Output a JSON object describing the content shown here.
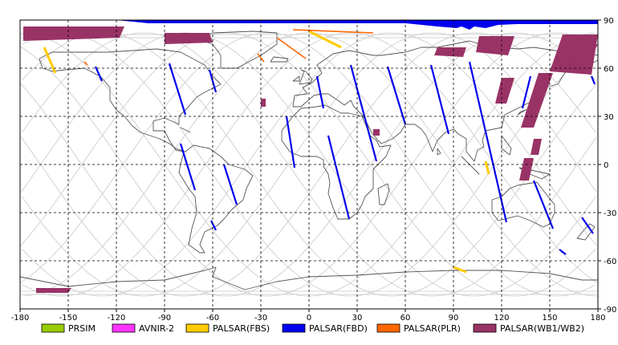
{
  "map": {
    "lon_range": [
      -180,
      180
    ],
    "lat_range": [
      -90,
      90
    ],
    "lon_ticks": [
      "-180",
      "-150",
      "-120",
      "-90",
      "-60",
      "-30",
      "0",
      "30",
      "60",
      "90",
      "120",
      "150",
      "180"
    ],
    "lat_ticks": [
      "90",
      "60",
      "30",
      "0",
      "-30",
      "-60",
      "-90"
    ],
    "grid": "dashed",
    "colors": {
      "land_outline": "#555555",
      "orbit_track": "#c8c8c8",
      "grid": "#000000",
      "frame": "#000000"
    }
  },
  "legend": [
    {
      "label": "PRSIM",
      "color": "#99cc00"
    },
    {
      "label": "AVNIR-2",
      "color": "#ff33ff"
    },
    {
      "label": "PALSAR(FBS)",
      "color": "#ffcc00"
    },
    {
      "label": "PALSAR(FBD)",
      "color": "#0000ee"
    },
    {
      "label": "PALSAR(PLR)",
      "color": "#ff6600"
    },
    {
      "label": "PALSAR(WB1/WB2)",
      "color": "#993366"
    }
  ],
  "coverage": {
    "fbd_strips": [
      {
        "lon1": -133,
        "lat1": 61,
        "lon2": -129,
        "lat2": 52
      },
      {
        "lon1": -87,
        "lat1": 63,
        "lon2": -77,
        "lat2": 31
      },
      {
        "lon1": -62,
        "lat1": 59,
        "lon2": -58,
        "lat2": 45
      },
      {
        "lon1": -80,
        "lat1": 13,
        "lon2": -71,
        "lat2": -16
      },
      {
        "lon1": -53,
        "lat1": 0,
        "lon2": -45,
        "lat2": -25
      },
      {
        "lon1": -61,
        "lat1": -35,
        "lon2": -58,
        "lat2": -41
      },
      {
        "lon1": -14,
        "lat1": 30,
        "lon2": -9,
        "lat2": -2
      },
      {
        "lon1": 5,
        "lat1": 55,
        "lon2": 9,
        "lat2": 35
      },
      {
        "lon1": 26,
        "lat1": 62,
        "lon2": 42,
        "lat2": 2
      },
      {
        "lon1": 12,
        "lat1": 18,
        "lon2": 25,
        "lat2": -34
      },
      {
        "lon1": 49,
        "lat1": 61,
        "lon2": 60,
        "lat2": 25
      },
      {
        "lon1": 76,
        "lat1": 62,
        "lon2": 87,
        "lat2": 19
      },
      {
        "lon1": 100,
        "lat1": 64,
        "lon2": 123,
        "lat2": -36
      },
      {
        "lon1": 138,
        "lat1": 55,
        "lon2": 133,
        "lat2": 35
      },
      {
        "lon1": 140,
        "lat1": -10,
        "lon2": 152,
        "lat2": -40
      },
      {
        "lon1": 170,
        "lat1": -33,
        "lon2": 177,
        "lat2": -43
      },
      {
        "lon1": 176,
        "lat1": 55,
        "lon2": 178,
        "lat2": 50
      },
      {
        "lon1": 156,
        "lat1": -53,
        "lon2": 160,
        "lat2": -56
      }
    ],
    "wb_polygons": [
      [
        [
          -178,
          86
        ],
        [
          -115,
          86
        ],
        [
          -118,
          79
        ],
        [
          -178,
          77
        ]
      ],
      [
        [
          -90,
          82
        ],
        [
          -62,
          82
        ],
        [
          -60,
          76
        ],
        [
          -90,
          75
        ]
      ],
      [
        [
          -170,
          -77
        ],
        [
          -148,
          -77
        ],
        [
          -150,
          -80
        ],
        [
          -170,
          -80
        ]
      ],
      [
        [
          80,
          73
        ],
        [
          98,
          73
        ],
        [
          96,
          67
        ],
        [
          78,
          68
        ]
      ],
      [
        [
          106,
          80
        ],
        [
          128,
          80
        ],
        [
          124,
          68
        ],
        [
          104,
          70
        ]
      ],
      [
        [
          158,
          81
        ],
        [
          180,
          81
        ],
        [
          176,
          56
        ],
        [
          150,
          58
        ]
      ],
      [
        [
          180,
          75
        ],
        [
          173,
          62
        ],
        [
          165,
          62
        ],
        [
          168,
          74
        ]
      ],
      [
        [
          120,
          54
        ],
        [
          128,
          54
        ],
        [
          123,
          38
        ],
        [
          116,
          38
        ]
      ],
      [
        [
          143,
          57
        ],
        [
          152,
          57
        ],
        [
          140,
          23
        ],
        [
          132,
          23
        ]
      ],
      [
        [
          140,
          16
        ],
        [
          145,
          16
        ],
        [
          143,
          6
        ],
        [
          138,
          6
        ]
      ],
      [
        [
          134,
          4
        ],
        [
          140,
          4
        ],
        [
          137,
          -10
        ],
        [
          131,
          -10
        ]
      ],
      [
        [
          -30,
          41
        ],
        [
          -27,
          41
        ],
        [
          -27,
          36
        ],
        [
          -30,
          36
        ]
      ],
      [
        [
          40,
          22
        ],
        [
          44,
          22
        ],
        [
          44,
          18
        ],
        [
          40,
          18
        ]
      ]
    ],
    "fbs_strips": [
      {
        "lon1": -165,
        "lat1": 73,
        "lon2": -158,
        "lat2": 57
      },
      {
        "lon1": 0,
        "lat1": 83,
        "lon2": 20,
        "lat2": 73
      },
      {
        "lon1": 90,
        "lat1": -64,
        "lon2": 98,
        "lat2": -67
      },
      {
        "lon1": 110,
        "lat1": 2,
        "lon2": 112,
        "lat2": -6
      }
    ],
    "plr_strips": [
      {
        "lon1": -10,
        "lat1": 84,
        "lon2": 40,
        "lat2": 82
      },
      {
        "lon1": -20,
        "lat1": 79,
        "lon2": -2,
        "lat2": 66
      },
      {
        "lon1": -32,
        "lat1": 69,
        "lon2": -28,
        "lat2": 64
      },
      {
        "lon1": -140,
        "lat1": 64,
        "lon2": -138,
        "lat2": 62
      }
    ]
  }
}
